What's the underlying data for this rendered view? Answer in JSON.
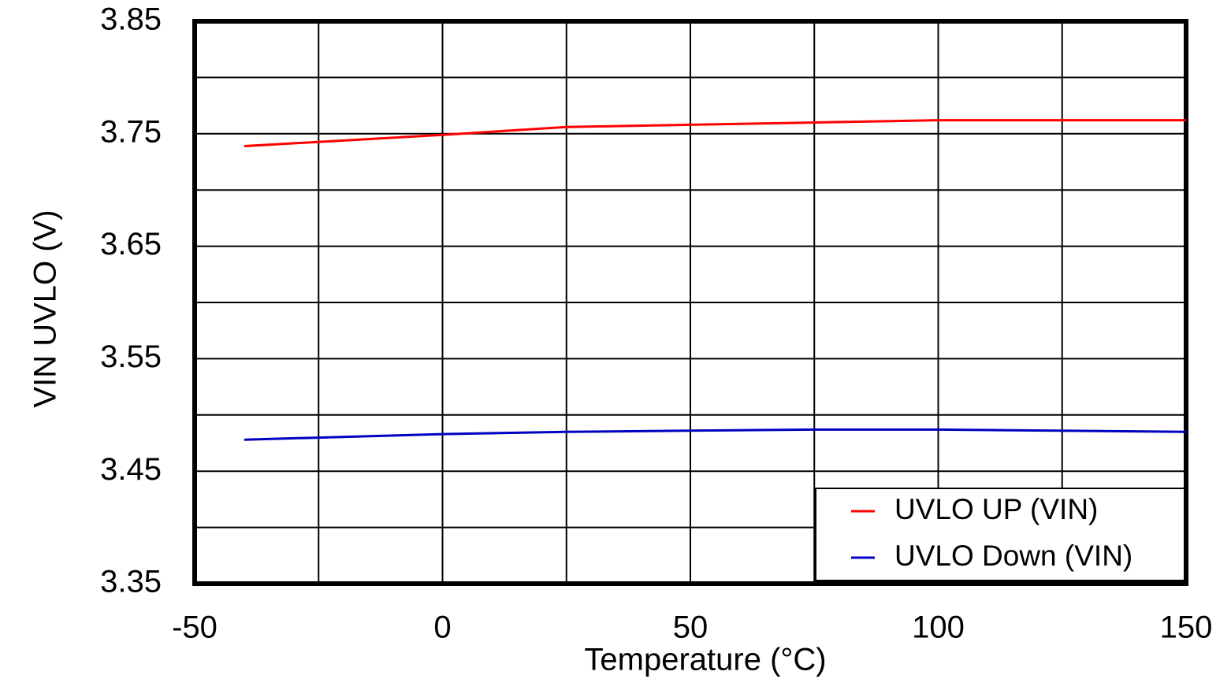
{
  "chart_data": {
    "type": "line",
    "xlabel": "Temperature (°C)",
    "ylabel": "VIN UVLO (V)",
    "x": [
      -40,
      0,
      25,
      50,
      75,
      100,
      150
    ],
    "series": [
      {
        "name": "UVLO UP (VIN)",
        "color": "#ff0000",
        "values": [
          3.739,
          3.749,
          3.756,
          3.758,
          3.76,
          3.762,
          3.762
        ]
      },
      {
        "name": "UVLO Down (VIN)",
        "color": "#0000c0",
        "values": [
          3.478,
          3.483,
          3.485,
          3.486,
          3.487,
          3.487,
          3.485
        ]
      }
    ],
    "xlim": [
      -50,
      150
    ],
    "xticks": [
      -50,
      0,
      50,
      100,
      150
    ],
    "xminor": [
      -25,
      25,
      75,
      125
    ],
    "ylim": [
      3.35,
      3.85
    ],
    "yticks": [
      3.35,
      3.45,
      3.55,
      3.65,
      3.75,
      3.85
    ],
    "yminor": [
      3.4,
      3.5,
      3.6,
      3.7,
      3.8
    ],
    "grid": true,
    "legend": "lower right"
  }
}
